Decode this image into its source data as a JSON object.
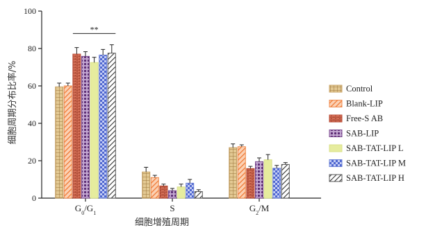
{
  "chart_data": {
    "type": "bar",
    "xlabel": "细胞增殖周期",
    "ylabel": "细胞周期分布比率/%",
    "ylim": [
      0,
      100
    ],
    "yticks": [
      0,
      20,
      40,
      60,
      80,
      100
    ],
    "categories": [
      {
        "main": "G",
        "sub1": "0",
        "sep": "/G",
        "sub2": "1"
      },
      {
        "main": "S",
        "sub1": "",
        "sep": "",
        "sub2": ""
      },
      {
        "main": "G",
        "sub1": "2",
        "sep": "/M",
        "sub2": ""
      }
    ],
    "series": [
      {
        "name": "Control",
        "values": [
          59.5,
          14.0,
          27.0
        ],
        "errors": [
          2.0,
          2.5,
          2.0
        ],
        "color": "#c9a56a",
        "pattern": "grid"
      },
      {
        "name": "Blank-LIP",
        "values": [
          60.0,
          11.0,
          27.5
        ],
        "errors": [
          1.5,
          1.2,
          1.0
        ],
        "color": "#f08a4b",
        "pattern": "diag"
      },
      {
        "name": "Free-S AB",
        "values": [
          77.0,
          6.5,
          15.8
        ],
        "errors": [
          3.5,
          1.0,
          1.2
        ],
        "color": "#b5452f",
        "pattern": "brick"
      },
      {
        "name": "SAB-LIP",
        "values": [
          75.8,
          4.0,
          19.5
        ],
        "errors": [
          2.5,
          1.2,
          2.0
        ],
        "color": "#7b4a8f",
        "pattern": "dots"
      },
      {
        "name": "SAB-TAT-LIP L",
        "values": [
          72.5,
          6.0,
          20.5
        ],
        "errors": [
          2.8,
          1.5,
          2.8
        ],
        "color": "#d8e08a",
        "pattern": "solid"
      },
      {
        "name": "SAB-TAT-LIP M",
        "values": [
          76.5,
          8.0,
          16.0
        ],
        "errors": [
          3.0,
          2.0,
          1.5
        ],
        "color": "#6a7fd6",
        "pattern": "check"
      },
      {
        "name": "SAB-TAT-LIP H",
        "values": [
          77.5,
          3.5,
          18.0
        ],
        "errors": [
          4.5,
          1.0,
          1.0
        ],
        "color": "#555555",
        "pattern": "hatch"
      }
    ],
    "annotations": [
      {
        "text": "**",
        "category_index": 0
      }
    ],
    "legend_position": "right",
    "grid": false
  }
}
